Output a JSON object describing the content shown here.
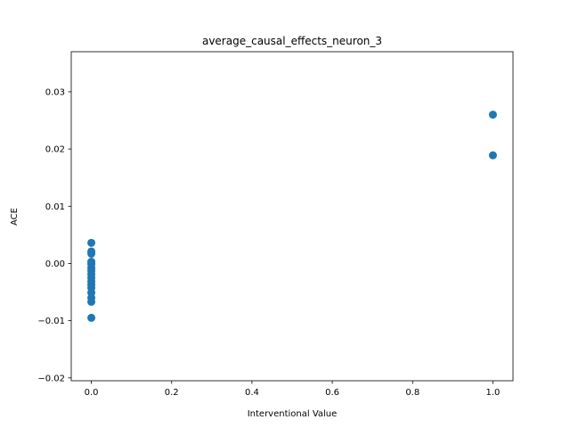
{
  "chart_data": {
    "type": "scatter",
    "title": "average_causal_effects_neuron_3",
    "xlabel": "Interventional Value",
    "ylabel": "ACE",
    "xlim": [
      -0.05,
      1.05
    ],
    "ylim": [
      -0.0205,
      0.037
    ],
    "x_ticks": [
      0.0,
      0.2,
      0.4,
      0.6,
      0.8,
      1.0
    ],
    "x_tick_labels": [
      "0.0",
      "0.2",
      "0.4",
      "0.6",
      "0.8",
      "1.0"
    ],
    "y_ticks": [
      -0.02,
      -0.01,
      0.0,
      0.01,
      0.02,
      0.03
    ],
    "y_tick_labels": [
      "−0.02",
      "−0.01",
      "0.00",
      "0.01",
      "0.02",
      "0.03"
    ],
    "grid": false,
    "legend": "none",
    "marker_color": "#1f77b4",
    "points": [
      {
        "x": 0.0,
        "y": 0.0036
      },
      {
        "x": 0.0,
        "y": 0.0021
      },
      {
        "x": 0.0,
        "y": 0.0017
      },
      {
        "x": 0.0,
        "y": 0.0003
      },
      {
        "x": 0.0,
        "y": -0.0001
      },
      {
        "x": 0.0,
        "y": -0.0008
      },
      {
        "x": 0.0,
        "y": -0.0013
      },
      {
        "x": 0.0,
        "y": -0.0019
      },
      {
        "x": 0.0,
        "y": -0.0025
      },
      {
        "x": 0.0,
        "y": -0.0031
      },
      {
        "x": 0.0,
        "y": -0.0037
      },
      {
        "x": 0.0,
        "y": -0.0043
      },
      {
        "x": 0.0,
        "y": -0.0051
      },
      {
        "x": 0.0,
        "y": -0.006
      },
      {
        "x": 0.0,
        "y": -0.0067
      },
      {
        "x": 0.0,
        "y": -0.0095
      },
      {
        "x": 1.0,
        "y": 0.026
      },
      {
        "x": 1.0,
        "y": 0.0189
      }
    ]
  }
}
